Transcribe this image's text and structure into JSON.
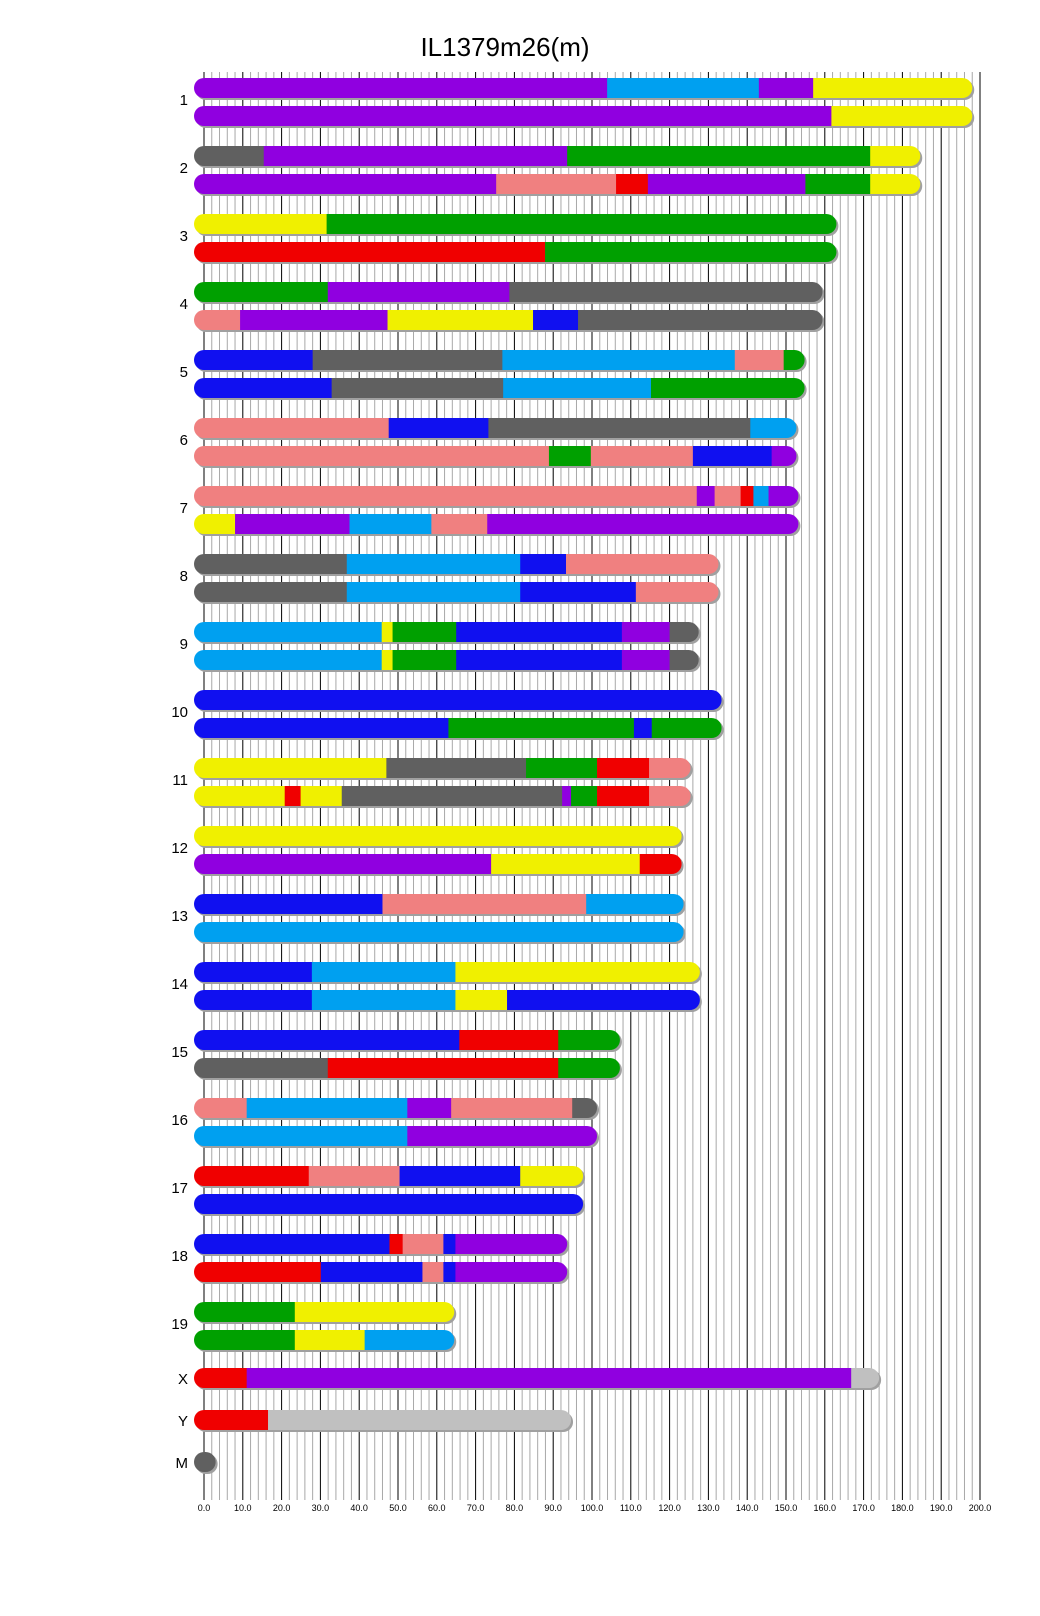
{
  "chart_data": {
    "type": "chromosome-painting",
    "title": "IL1379m26(m)",
    "xlabel": "",
    "ylabel": "",
    "xlim": [
      0,
      200
    ],
    "x_ticks": [
      "0.0",
      "10.0",
      "20.0",
      "30.0",
      "40.0",
      "50.0",
      "60.0",
      "70.0",
      "80.0",
      "90.0",
      "100.0",
      "110.0",
      "120.0",
      "130.0",
      "140.0",
      "150.0",
      "160.0",
      "170.0",
      "180.0",
      "190.0",
      "200.0"
    ],
    "grid": true,
    "colors": {
      "purple": "#9000e0",
      "sky": "#00a0f0",
      "yellow": "#f0f000",
      "gray": "#606060",
      "green": "#00a000",
      "salmon": "#f08080",
      "red": "#f00000",
      "blue": "#1010f0",
      "lightgray": "#c0c0c0"
    },
    "chromosomes": [
      {
        "name": "1",
        "homologs": [
          [
            [
              0,
              103.9,
              "purple"
            ],
            [
              103.9,
              143,
              "sky"
            ],
            [
              143,
              157,
              "purple"
            ],
            [
              157,
              198,
              "yellow"
            ]
          ],
          [
            [
              0,
              161.7,
              "purple"
            ],
            [
              161.7,
              198,
              "yellow"
            ]
          ]
        ]
      },
      {
        "name": "2",
        "homologs": [
          [
            [
              0,
              15.4,
              "gray"
            ],
            [
              15.4,
              93.6,
              "purple"
            ],
            [
              93.6,
              171.7,
              "green"
            ],
            [
              171.7,
              184.6,
              "yellow"
            ]
          ],
          [
            [
              0,
              75.3,
              "purple"
            ],
            [
              75.3,
              106.2,
              "salmon"
            ],
            [
              106.2,
              114.4,
              "red"
            ],
            [
              114.4,
              155,
              "purple"
            ],
            [
              155,
              171.7,
              "green"
            ],
            [
              171.7,
              184.6,
              "yellow"
            ]
          ]
        ]
      },
      {
        "name": "3",
        "homologs": [
          [
            [
              0,
              31.6,
              "yellow"
            ],
            [
              31.6,
              163,
              "green"
            ]
          ],
          [
            [
              0,
              87.9,
              "red"
            ],
            [
              87.9,
              163,
              "green"
            ]
          ]
        ]
      },
      {
        "name": "4",
        "homologs": [
          [
            [
              0,
              31.9,
              "green"
            ],
            [
              31.9,
              78.7,
              "purple"
            ],
            [
              78.7,
              159.4,
              "gray"
            ]
          ],
          [
            [
              0,
              9.3,
              "salmon"
            ],
            [
              9.3,
              47.3,
              "purple"
            ],
            [
              47.3,
              84.8,
              "yellow"
            ],
            [
              84.8,
              96.4,
              "blue"
            ],
            [
              96.4,
              159.4,
              "gray"
            ]
          ]
        ]
      },
      {
        "name": "5",
        "homologs": [
          [
            [
              0,
              28,
              "blue"
            ],
            [
              28,
              76.9,
              "gray"
            ],
            [
              76.9,
              136.8,
              "sky"
            ],
            [
              136.8,
              149.4,
              "salmon"
            ],
            [
              149.4,
              154.8,
              "green"
            ]
          ],
          [
            [
              0,
              32.9,
              "blue"
            ],
            [
              32.9,
              77.1,
              "gray"
            ],
            [
              77.1,
              115.2,
              "sky"
            ],
            [
              115.2,
              154.8,
              "green"
            ]
          ]
        ]
      },
      {
        "name": "6",
        "homologs": [
          [
            [
              0,
              47.6,
              "salmon"
            ],
            [
              47.6,
              73.3,
              "blue"
            ],
            [
              73.3,
              140.8,
              "gray"
            ],
            [
              140.8,
              152.7,
              "sky"
            ]
          ],
          [
            [
              0,
              88.9,
              "salmon"
            ],
            [
              88.9,
              99.7,
              "green"
            ],
            [
              99.7,
              126,
              "salmon"
            ],
            [
              126,
              146.3,
              "blue"
            ],
            [
              146.3,
              152.7,
              "purple"
            ]
          ]
        ]
      },
      {
        "name": "7",
        "homologs": [
          [
            [
              0,
              127,
              "salmon"
            ],
            [
              127,
              131.6,
              "purple"
            ],
            [
              131.6,
              138.3,
              "salmon"
            ],
            [
              138.3,
              141.6,
              "red"
            ],
            [
              141.6,
              145.5,
              "sky"
            ],
            [
              145.5,
              153.2,
              "purple"
            ]
          ],
          [
            [
              0,
              8,
              "yellow"
            ],
            [
              8,
              37.5,
              "purple"
            ],
            [
              37.5,
              58.6,
              "sky"
            ],
            [
              58.6,
              73,
              "salmon"
            ],
            [
              73,
              153.2,
              "purple"
            ]
          ]
        ]
      },
      {
        "name": "8",
        "homologs": [
          [
            [
              0,
              36.8,
              "gray"
            ],
            [
              36.8,
              81.5,
              "sky"
            ],
            [
              81.5,
              93.3,
              "blue"
            ],
            [
              93.3,
              132.6,
              "salmon"
            ]
          ],
          [
            [
              0,
              36.8,
              "gray"
            ],
            [
              36.8,
              81.5,
              "sky"
            ],
            [
              81.5,
              111.3,
              "blue"
            ],
            [
              111.3,
              132.6,
              "salmon"
            ]
          ]
        ]
      },
      {
        "name": "9",
        "homologs": [
          [
            [
              0,
              45.8,
              "sky"
            ],
            [
              45.8,
              48.6,
              "yellow"
            ],
            [
              48.6,
              65,
              "green"
            ],
            [
              65,
              107.7,
              "blue"
            ],
            [
              107.7,
              120,
              "purple"
            ],
            [
              120,
              127.5,
              "gray"
            ]
          ],
          [
            [
              0,
              45.8,
              "sky"
            ],
            [
              45.8,
              48.6,
              "yellow"
            ],
            [
              48.6,
              65,
              "green"
            ],
            [
              65,
              107.7,
              "blue"
            ],
            [
              107.7,
              120,
              "purple"
            ],
            [
              120,
              127.5,
              "gray"
            ]
          ]
        ]
      },
      {
        "name": "10",
        "homologs": [
          [
            [
              0,
              133.4,
              "blue"
            ]
          ],
          [
            [
              0,
              63,
              "blue"
            ],
            [
              63,
              110.8,
              "green"
            ],
            [
              110.8,
              115.4,
              "blue"
            ],
            [
              115.4,
              133.4,
              "green"
            ]
          ]
        ]
      },
      {
        "name": "11",
        "homologs": [
          [
            [
              0,
              47,
              "yellow"
            ],
            [
              47,
              83,
              "gray"
            ],
            [
              83,
              101.3,
              "green"
            ],
            [
              101.3,
              114.7,
              "red"
            ],
            [
              114.7,
              125.4,
              "salmon"
            ]
          ],
          [
            [
              0,
              20.8,
              "yellow"
            ],
            [
              20.8,
              24.9,
              "red"
            ],
            [
              24.9,
              35.5,
              "yellow"
            ],
            [
              35.5,
              92.3,
              "gray"
            ],
            [
              92.3,
              94.6,
              "purple"
            ],
            [
              94.6,
              101.3,
              "green"
            ],
            [
              101.3,
              114.7,
              "red"
            ],
            [
              114.7,
              125.4,
              "salmon"
            ]
          ]
        ]
      },
      {
        "name": "12",
        "homologs": [
          [
            [
              0,
              123.1,
              "yellow"
            ]
          ],
          [
            [
              0,
              74,
              "purple"
            ],
            [
              74,
              112.3,
              "yellow"
            ],
            [
              112.3,
              123.1,
              "red"
            ]
          ]
        ]
      },
      {
        "name": "13",
        "homologs": [
          [
            [
              0,
              46,
              "blue"
            ],
            [
              46,
              98.5,
              "salmon"
            ],
            [
              98.5,
              123.6,
              "sky"
            ]
          ],
          [
            [
              0,
              123.6,
              "sky"
            ]
          ]
        ]
      },
      {
        "name": "14",
        "homologs": [
          [
            [
              0,
              27.8,
              "blue"
            ],
            [
              27.8,
              64.8,
              "sky"
            ],
            [
              64.8,
              127.8,
              "yellow"
            ]
          ],
          [
            [
              0,
              27.8,
              "blue"
            ],
            [
              27.8,
              64.8,
              "sky"
            ],
            [
              64.8,
              78.1,
              "yellow"
            ],
            [
              78.1,
              127.8,
              "blue"
            ]
          ]
        ]
      },
      {
        "name": "15",
        "homologs": [
          [
            [
              0,
              65.8,
              "blue"
            ],
            [
              65.8,
              91.3,
              "red"
            ],
            [
              91.3,
              107.2,
              "green"
            ]
          ],
          [
            [
              0,
              31.9,
              "gray"
            ],
            [
              31.9,
              91.3,
              "red"
            ],
            [
              91.3,
              107.2,
              "green"
            ]
          ]
        ]
      },
      {
        "name": "16",
        "homologs": [
          [
            [
              0,
              11,
              "salmon"
            ],
            [
              11,
              52.4,
              "sky"
            ],
            [
              52.4,
              63.7,
              "purple"
            ],
            [
              63.7,
              94.9,
              "salmon"
            ],
            [
              94.9,
              101.3,
              "gray"
            ]
          ],
          [
            [
              0,
              52.4,
              "sky"
            ],
            [
              52.4,
              101.3,
              "purple"
            ]
          ]
        ]
      },
      {
        "name": "17",
        "homologs": [
          [
            [
              0,
              27,
              "red"
            ],
            [
              27,
              50.4,
              "salmon"
            ],
            [
              50.4,
              81.5,
              "blue"
            ],
            [
              81.5,
              97.7,
              "yellow"
            ]
          ],
          [
            [
              0,
              97.7,
              "blue"
            ]
          ]
        ]
      },
      {
        "name": "18",
        "homologs": [
          [
            [
              0,
              47.8,
              "blue"
            ],
            [
              47.8,
              51.2,
              "red"
            ],
            [
              51.2,
              61.7,
              "salmon"
            ],
            [
              61.7,
              64.8,
              "blue"
            ],
            [
              64.8,
              93.6,
              "purple"
            ]
          ],
          [
            [
              0,
              30.1,
              "red"
            ],
            [
              30.1,
              56.3,
              "blue"
            ],
            [
              56.3,
              61.7,
              "salmon"
            ],
            [
              61.7,
              64.8,
              "blue"
            ],
            [
              64.8,
              93.6,
              "purple"
            ]
          ]
        ]
      },
      {
        "name": "19",
        "homologs": [
          [
            [
              0,
              23.4,
              "green"
            ],
            [
              23.4,
              64.5,
              "yellow"
            ]
          ],
          [
            [
              0,
              23.4,
              "green"
            ],
            [
              23.4,
              41.4,
              "yellow"
            ],
            [
              41.4,
              64.5,
              "sky"
            ]
          ]
        ]
      },
      {
        "name": "X",
        "homologs": [
          [
            [
              0,
              11,
              "red"
            ],
            [
              11,
              166.8,
              "purple"
            ],
            [
              166.8,
              174,
              "lightgray"
            ]
          ]
        ]
      },
      {
        "name": "Y",
        "homologs": [
          [
            [
              0,
              16.5,
              "red"
            ],
            [
              16.5,
              94.6,
              "lightgray"
            ]
          ]
        ]
      },
      {
        "name": "M",
        "homologs": [
          [
            [
              0,
              3,
              "gray"
            ]
          ]
        ]
      }
    ]
  }
}
